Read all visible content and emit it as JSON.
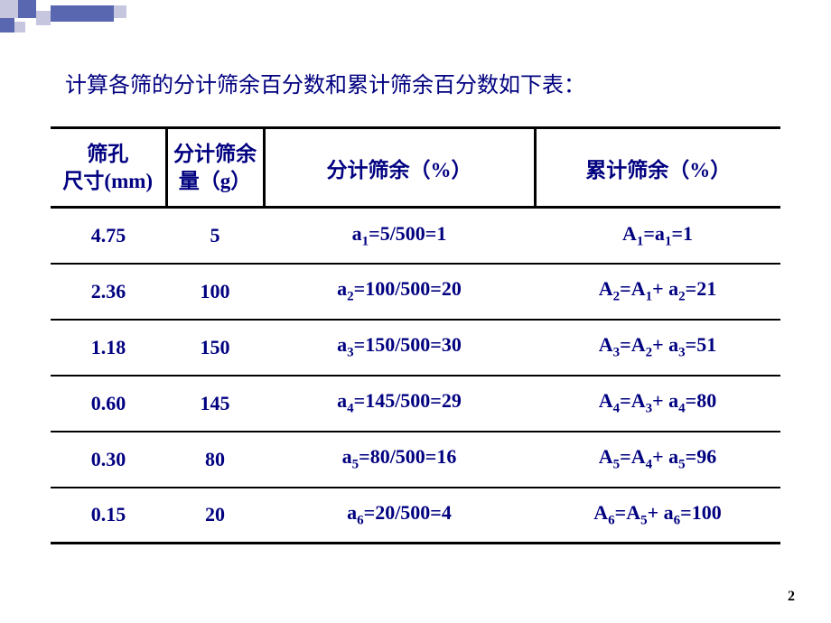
{
  "title": "计算各筛的分计筛余百分数和累计筛余百分数如下表：",
  "headers": {
    "col1_line1": "筛孔",
    "col1_line2": "尺寸(mm)",
    "col2_line1": "分计筛余",
    "col2_line2": "量（g）",
    "col3": "分计筛余（%）",
    "col4": "累计筛余（%）"
  },
  "rows": [
    {
      "size": "4.75",
      "mass": "5",
      "partial_sub": "1",
      "partial_val": "=5/500=1",
      "cum_pre": "A",
      "cum_sub1": "1",
      "cum_mid": "=a",
      "cum_sub2": "1",
      "cum_val": "=1"
    },
    {
      "size": "2.36",
      "mass": "100",
      "partial_sub": "2",
      "partial_val": "=100/500=20",
      "cum_pre": "A",
      "cum_sub1": "2",
      "cum_mid": "=A",
      "cum_sub2": "1",
      "cum_add": "+ a",
      "cum_sub3": "2",
      "cum_val": "=21"
    },
    {
      "size": "1.18",
      "mass": "150",
      "partial_sub": "3",
      "partial_val": "=150/500=30",
      "cum_pre": "A",
      "cum_sub1": "3",
      "cum_mid": "=A",
      "cum_sub2": "2",
      "cum_add": "+ a",
      "cum_sub3": "3",
      "cum_val": "=51"
    },
    {
      "size": "0.60",
      "mass": "145",
      "partial_sub": "4",
      "partial_val": "=145/500=29",
      "cum_pre": "A",
      "cum_sub1": "4",
      "cum_mid": "=A",
      "cum_sub2": "3",
      "cum_add": "+ a",
      "cum_sub3": "4",
      "cum_val": "=80"
    },
    {
      "size": "0.30",
      "mass": "80",
      "partial_sub": "5",
      "partial_val": "=80/500=16",
      "cum_pre": "A",
      "cum_sub1": "5",
      "cum_mid": "=A",
      "cum_sub2": "4",
      "cum_add": "+ a",
      "cum_sub3": "5",
      "cum_val": "=96"
    },
    {
      "size": "0.15",
      "mass": "20",
      "partial_sub": "6",
      "partial_val": "=20/500=4",
      "cum_pre": "A",
      "cum_sub1": "6",
      "cum_mid": "=A",
      "cum_sub2": "5",
      "cum_add": "+ a",
      "cum_sub3": "6",
      "cum_val": "=100"
    }
  ],
  "pageNumber": "2",
  "colors": {
    "text": "#000080",
    "border": "#000000",
    "deco_dark": "#5966b0",
    "deco_light": "#c6c7de"
  }
}
